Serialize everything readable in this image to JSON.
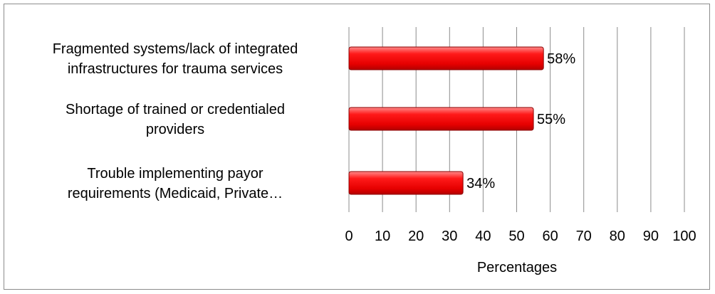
{
  "chart_data": {
    "type": "bar",
    "orientation": "horizontal",
    "categories": [
      [
        "Fragmented systems/lack of integrated",
        "infrastructures for trauma services"
      ],
      [
        "Shortage of trained or credentialed",
        "providers"
      ],
      [
        "Trouble implementing payor",
        "requirements (Medicaid, Private…"
      ]
    ],
    "values": [
      58,
      55,
      34
    ],
    "data_labels": [
      "58%",
      "55%",
      "34%"
    ],
    "xlabel": "Percentages",
    "ylabel": "",
    "xlim": [
      0,
      100
    ],
    "xticks": [
      0,
      10,
      20,
      30,
      40,
      50,
      60,
      70,
      80,
      90,
      100
    ],
    "grid": true,
    "bar_color": "#ff0000",
    "bar_edge_color": "#8b0000",
    "grid_color": "#8c8c8c"
  }
}
